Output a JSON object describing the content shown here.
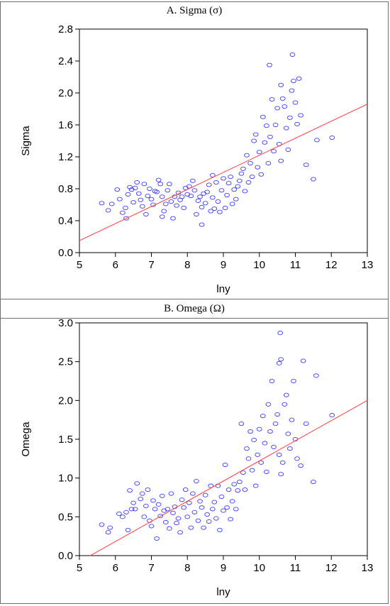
{
  "chart_data": [
    {
      "type": "scatter",
      "panel_title": "A.  Sigma (σ)",
      "xlabel": "lny",
      "ylabel": "Sigma",
      "xlim": [
        5,
        13
      ],
      "ylim": [
        0.0,
        2.8
      ],
      "xticks": [
        "5",
        "6",
        "7",
        "8",
        "9",
        "10",
        "11",
        "12",
        "13"
      ],
      "yticks": [
        "0.0",
        "0.4",
        "0.8",
        "1.2",
        "1.6",
        "2.0",
        "2.4",
        "2.8"
      ],
      "marker_color": "#3b3bff",
      "fit_color": "#ff4d4d",
      "fit_line": {
        "x": [
          5,
          13
        ],
        "y": [
          0.15,
          1.86
        ]
      },
      "points": [
        [
          5.62,
          0.62
        ],
        [
          5.8,
          0.53
        ],
        [
          5.9,
          0.61
        ],
        [
          6.05,
          0.79
        ],
        [
          6.12,
          0.67
        ],
        [
          6.2,
          0.5
        ],
        [
          6.28,
          0.56
        ],
        [
          6.3,
          0.43
        ],
        [
          6.35,
          0.73
        ],
        [
          6.4,
          0.82
        ],
        [
          6.45,
          0.79
        ],
        [
          6.5,
          0.63
        ],
        [
          6.55,
          0.81
        ],
        [
          6.6,
          0.88
        ],
        [
          6.65,
          0.74
        ],
        [
          6.7,
          0.66
        ],
        [
          6.75,
          0.58
        ],
        [
          6.8,
          0.86
        ],
        [
          6.85,
          0.48
        ],
        [
          6.9,
          0.71
        ],
        [
          6.95,
          0.8
        ],
        [
          7.0,
          0.67
        ],
        [
          7.05,
          0.6
        ],
        [
          7.1,
          0.77
        ],
        [
          7.15,
          0.76
        ],
        [
          7.2,
          0.91
        ],
        [
          7.25,
          0.86
        ],
        [
          7.3,
          0.7
        ],
        [
          7.3,
          0.45
        ],
        [
          7.35,
          0.52
        ],
        [
          7.4,
          0.61
        ],
        [
          7.45,
          0.78
        ],
        [
          7.5,
          0.86
        ],
        [
          7.55,
          0.64
        ],
        [
          7.6,
          0.43
        ],
        [
          7.65,
          0.7
        ],
        [
          7.7,
          0.59
        ],
        [
          7.75,
          0.75
        ],
        [
          7.8,
          0.66
        ],
        [
          7.85,
          0.7
        ],
        [
          7.9,
          0.56
        ],
        [
          7.95,
          0.81
        ],
        [
          8.0,
          0.73
        ],
        [
          8.05,
          0.83
        ],
        [
          8.1,
          0.71
        ],
        [
          8.15,
          0.9
        ],
        [
          8.2,
          0.78
        ],
        [
          8.25,
          0.48
        ],
        [
          8.3,
          0.65
        ],
        [
          8.35,
          0.7
        ],
        [
          8.4,
          0.57
        ],
        [
          8.4,
          0.35
        ],
        [
          8.45,
          0.74
        ],
        [
          8.5,
          0.62
        ],
        [
          8.55,
          0.76
        ],
        [
          8.6,
          0.85
        ],
        [
          8.65,
          0.52
        ],
        [
          8.7,
          0.69
        ],
        [
          8.7,
          0.97
        ],
        [
          8.75,
          0.55
        ],
        [
          8.8,
          0.88
        ],
        [
          8.85,
          0.64
        ],
        [
          8.9,
          0.51
        ],
        [
          8.95,
          0.78
        ],
        [
          9.0,
          0.93
        ],
        [
          9.05,
          0.56
        ],
        [
          9.1,
          0.72
        ],
        [
          9.15,
          0.87
        ],
        [
          9.2,
          0.95
        ],
        [
          9.25,
          0.61
        ],
        [
          9.3,
          0.79
        ],
        [
          9.35,
          0.67
        ],
        [
          9.4,
          0.83
        ],
        [
          9.45,
          0.9
        ],
        [
          9.5,
          0.99
        ],
        [
          9.55,
          1.05
        ],
        [
          9.6,
          0.77
        ],
        [
          9.65,
          1.22
        ],
        [
          9.7,
          0.88
        ],
        [
          9.75,
          1.12
        ],
        [
          9.8,
          0.95
        ],
        [
          9.85,
          1.4
        ],
        [
          9.9,
          1.48
        ],
        [
          9.95,
          1.07
        ],
        [
          10.0,
          1.26
        ],
        [
          10.05,
          0.98
        ],
        [
          10.1,
          1.7
        ],
        [
          10.15,
          1.38
        ],
        [
          10.2,
          1.59
        ],
        [
          10.25,
          1.12
        ],
        [
          10.3,
          1.45
        ],
        [
          10.35,
          1.92
        ],
        [
          10.4,
          1.27
        ],
        [
          10.45,
          1.6
        ],
        [
          10.5,
          1.81
        ],
        [
          10.55,
          1.36
        ],
        [
          10.6,
          2.1
        ],
        [
          10.6,
          1.15
        ],
        [
          10.65,
          1.93
        ],
        [
          10.7,
          1.83
        ],
        [
          10.75,
          1.56
        ],
        [
          10.8,
          1.29
        ],
        [
          10.85,
          1.69
        ],
        [
          10.9,
          2.03
        ],
        [
          10.95,
          2.15
        ],
        [
          11.0,
          1.88
        ],
        [
          11.05,
          1.61
        ],
        [
          11.1,
          2.18
        ],
        [
          11.15,
          1.72
        ],
        [
          11.3,
          1.1
        ],
        [
          11.5,
          0.92
        ],
        [
          11.6,
          1.41
        ],
        [
          12.02,
          1.44
        ],
        [
          10.28,
          2.35
        ],
        [
          10.92,
          2.48
        ]
      ]
    },
    {
      "type": "scatter",
      "panel_title": "B.  Omega (Ω)",
      "xlabel": "lny",
      "ylabel": "Omega",
      "xlim": [
        5,
        13
      ],
      "ylim": [
        0.0,
        3.0
      ],
      "xticks": [
        "5",
        "6",
        "7",
        "8",
        "9",
        "10",
        "11",
        "12",
        "13"
      ],
      "yticks": [
        "0.0",
        "0.5",
        "1.0",
        "1.5",
        "2.0",
        "2.5",
        "3.0"
      ],
      "marker_color": "#3b3bff",
      "fit_color": "#ff4d4d",
      "fit_line": {
        "x": [
          5.3,
          13
        ],
        "y": [
          0.0,
          2.0
        ]
      },
      "points": [
        [
          5.62,
          0.4
        ],
        [
          5.8,
          0.3
        ],
        [
          5.85,
          0.36
        ],
        [
          6.1,
          0.54
        ],
        [
          6.2,
          0.5
        ],
        [
          6.3,
          0.56
        ],
        [
          6.35,
          0.33
        ],
        [
          6.4,
          0.84
        ],
        [
          6.45,
          0.6
        ],
        [
          6.5,
          0.68
        ],
        [
          6.55,
          0.6
        ],
        [
          6.6,
          0.93
        ],
        [
          6.7,
          0.73
        ],
        [
          6.75,
          0.8
        ],
        [
          6.8,
          0.5
        ],
        [
          6.85,
          0.64
        ],
        [
          6.9,
          0.85
        ],
        [
          6.95,
          0.45
        ],
        [
          7.0,
          0.38
        ],
        [
          7.05,
          0.71
        ],
        [
          7.1,
          0.6
        ],
        [
          7.15,
          0.22
        ],
        [
          7.2,
          0.66
        ],
        [
          7.25,
          0.51
        ],
        [
          7.3,
          0.77
        ],
        [
          7.35,
          0.58
        ],
        [
          7.4,
          0.43
        ],
        [
          7.45,
          0.6
        ],
        [
          7.5,
          0.35
        ],
        [
          7.55,
          0.8
        ],
        [
          7.6,
          0.55
        ],
        [
          7.65,
          0.63
        ],
        [
          7.7,
          0.42
        ],
        [
          7.75,
          0.48
        ],
        [
          7.8,
          0.3
        ],
        [
          7.85,
          0.72
        ],
        [
          7.9,
          0.62
        ],
        [
          7.95,
          0.85
        ],
        [
          8.0,
          0.5
        ],
        [
          8.05,
          0.68
        ],
        [
          8.1,
          0.36
        ],
        [
          8.15,
          0.8
        ],
        [
          8.2,
          0.56
        ],
        [
          8.25,
          0.96
        ],
        [
          8.3,
          0.45
        ],
        [
          8.35,
          0.7
        ],
        [
          8.4,
          0.62
        ],
        [
          8.45,
          0.36
        ],
        [
          8.5,
          0.78
        ],
        [
          8.55,
          0.53
        ],
        [
          8.6,
          0.44
        ],
        [
          8.65,
          0.9
        ],
        [
          8.7,
          0.6
        ],
        [
          8.75,
          0.69
        ],
        [
          8.8,
          0.48
        ],
        [
          8.85,
          0.9
        ],
        [
          8.9,
          0.33
        ],
        [
          8.95,
          0.76
        ],
        [
          9.0,
          0.58
        ],
        [
          9.05,
          1.17
        ],
        [
          9.1,
          0.62
        ],
        [
          9.15,
          0.85
        ],
        [
          9.2,
          0.47
        ],
        [
          9.25,
          0.7
        ],
        [
          9.3,
          0.92
        ],
        [
          9.35,
          0.6
        ],
        [
          9.4,
          0.84
        ],
        [
          9.45,
          0.95
        ],
        [
          9.5,
          1.7
        ],
        [
          9.55,
          1.07
        ],
        [
          9.6,
          0.85
        ],
        [
          9.65,
          1.38
        ],
        [
          9.7,
          1.25
        ],
        [
          9.75,
          1.6
        ],
        [
          9.8,
          1.1
        ],
        [
          9.85,
          1.49
        ],
        [
          9.9,
          0.9
        ],
        [
          9.95,
          1.3
        ],
        [
          10.0,
          1.63
        ],
        [
          10.05,
          1.2
        ],
        [
          10.1,
          1.8
        ],
        [
          10.15,
          1.45
        ],
        [
          10.2,
          1.08
        ],
        [
          10.25,
          1.95
        ],
        [
          10.3,
          1.6
        ],
        [
          10.35,
          2.25
        ],
        [
          10.4,
          1.4
        ],
        [
          10.45,
          1.7
        ],
        [
          10.5,
          1.82
        ],
        [
          10.55,
          1.3
        ],
        [
          10.6,
          2.53
        ],
        [
          10.6,
          1.05
        ],
        [
          10.65,
          1.2
        ],
        [
          10.7,
          1.95
        ],
        [
          10.75,
          2.07
        ],
        [
          10.8,
          1.57
        ],
        [
          10.85,
          1.38
        ],
        [
          10.9,
          1.75
        ],
        [
          10.95,
          2.25
        ],
        [
          11.0,
          1.5
        ],
        [
          11.05,
          1.25
        ],
        [
          11.15,
          1.16
        ],
        [
          11.3,
          1.7
        ],
        [
          11.5,
          0.95
        ],
        [
          11.58,
          2.32
        ],
        [
          12.02,
          1.81
        ],
        [
          10.58,
          2.87
        ],
        [
          11.22,
          2.51
        ],
        [
          10.55,
          2.48
        ]
      ]
    }
  ]
}
